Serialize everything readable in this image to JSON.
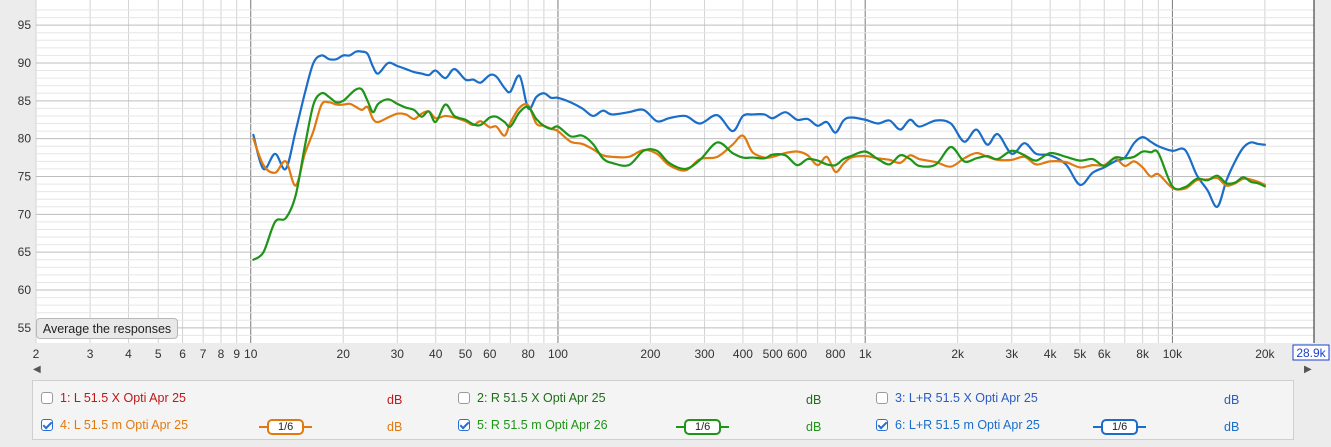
{
  "chart_data": {
    "type": "line",
    "x_scale": "log",
    "xlim": [
      2,
      28900
    ],
    "ylim": [
      53,
      97
    ],
    "grid": true,
    "yticks": [
      55,
      60,
      65,
      70,
      75,
      80,
      85,
      90,
      95
    ],
    "xticks": [
      {
        "v": 2,
        "label": "2"
      },
      {
        "v": 3,
        "label": "3"
      },
      {
        "v": 4,
        "label": "4"
      },
      {
        "v": 5,
        "label": "5"
      },
      {
        "v": 6,
        "label": "6"
      },
      {
        "v": 7,
        "label": "7"
      },
      {
        "v": 8,
        "label": "8"
      },
      {
        "v": 9,
        "label": "9"
      },
      {
        "v": 10,
        "label": "10"
      },
      {
        "v": 20,
        "label": "20"
      },
      {
        "v": 30,
        "label": "30"
      },
      {
        "v": 40,
        "label": "40"
      },
      {
        "v": 50,
        "label": "50"
      },
      {
        "v": 60,
        "label": "60"
      },
      {
        "v": 80,
        "label": "80"
      },
      {
        "v": 100,
        "label": "100"
      },
      {
        "v": 200,
        "label": "200"
      },
      {
        "v": 300,
        "label": "300"
      },
      {
        "v": 400,
        "label": "400"
      },
      {
        "v": 500,
        "label": "500"
      },
      {
        "v": 600,
        "label": "600"
      },
      {
        "v": 800,
        "label": "800"
      },
      {
        "v": 1000,
        "label": "1k"
      },
      {
        "v": 2000,
        "label": "2k"
      },
      {
        "v": 3000,
        "label": "3k"
      },
      {
        "v": 4000,
        "label": "4k"
      },
      {
        "v": 5000,
        "label": "5k"
      },
      {
        "v": 6000,
        "label": "6k"
      },
      {
        "v": 8000,
        "label": "8k"
      },
      {
        "v": 10000,
        "label": "10k"
      },
      {
        "v": 20000,
        "label": "20k"
      }
    ],
    "x_end_label": "28.9k",
    "series": [
      {
        "name": "L+R 51.5 m Opti Apr 25",
        "color": "#1a6ec8",
        "x": [
          10.2,
          11,
          12,
          13,
          14,
          15,
          16,
          17,
          18,
          19,
          20,
          21,
          22,
          23,
          24,
          25,
          26,
          28,
          30,
          32,
          34,
          36,
          38,
          40,
          43,
          46,
          50,
          53,
          56,
          60,
          63,
          67,
          70,
          75,
          80,
          85,
          90,
          95,
          100,
          110,
          120,
          130,
          140,
          150,
          170,
          190,
          210,
          230,
          260,
          290,
          330,
          370,
          400,
          430,
          470,
          500,
          550,
          600,
          650,
          700,
          750,
          800,
          850,
          900,
          1000,
          1100,
          1200,
          1300,
          1400,
          1500,
          1700,
          1900,
          2100,
          2300,
          2500,
          2700,
          3000,
          3300,
          3600,
          4000,
          4500,
          5000,
          5500,
          6000,
          6500,
          7000,
          7500,
          8000,
          8500,
          9000,
          10000,
          11000,
          12000,
          13000,
          14000,
          15000,
          16000,
          17000,
          18000,
          19000,
          20000
        ],
        "y": [
          80.5,
          76,
          78,
          76,
          81,
          86,
          90,
          91,
          90.5,
          90.5,
          91,
          91,
          91.5,
          91.5,
          91.2,
          89.5,
          88.6,
          90,
          89.6,
          89.2,
          88.8,
          88.6,
          88.4,
          89,
          88,
          89.2,
          87.8,
          87.8,
          87.4,
          88.4,
          88.2,
          86.7,
          86.2,
          88.3,
          84,
          85.5,
          86,
          85.4,
          85.4,
          84.8,
          84,
          83,
          83.7,
          83.2,
          83.5,
          83.8,
          82.3,
          82.7,
          83,
          82,
          83.1,
          81,
          83,
          83.2,
          83.2,
          82.7,
          83.5,
          82.5,
          82.6,
          81.7,
          82.2,
          80.8,
          82.4,
          82.8,
          82.5,
          82,
          82.4,
          81.2,
          82.5,
          81.6,
          82.4,
          82,
          79.6,
          81.2,
          79.2,
          80.6,
          78,
          79.4,
          78,
          77.8,
          76.6,
          73.9,
          75.5,
          76.2,
          77,
          77.5,
          79.4,
          80.2,
          79.6,
          79,
          78.4,
          78.5,
          75.2,
          73.2,
          71,
          74.5,
          77,
          78.8,
          79.5,
          79.3,
          79.2
        ]
      },
      {
        "name": "L 51.5 m Opti Apr 25",
        "color": "#e07a10",
        "x": [
          10.2,
          11,
          12,
          13,
          14,
          15,
          16,
          17,
          18,
          19,
          20,
          21,
          22,
          23,
          24,
          25,
          26,
          28,
          30,
          32,
          34,
          36,
          38,
          40,
          43,
          46,
          50,
          53,
          56,
          60,
          63,
          67,
          70,
          75,
          80,
          85,
          90,
          95,
          100,
          110,
          120,
          130,
          140,
          150,
          170,
          190,
          210,
          230,
          260,
          290,
          330,
          370,
          400,
          430,
          470,
          500,
          550,
          600,
          650,
          700,
          750,
          800,
          850,
          900,
          1000,
          1100,
          1200,
          1300,
          1400,
          1500,
          1700,
          1900,
          2100,
          2300,
          2500,
          2700,
          3000,
          3300,
          3600,
          4000,
          4500,
          5000,
          5500,
          6000,
          6500,
          7000,
          7500,
          8000,
          8500,
          9000,
          10000,
          11000,
          12000,
          13000,
          14000,
          15000,
          16000,
          17000,
          18000,
          19000,
          20000
        ],
        "y": [
          80,
          76.5,
          75.5,
          77,
          73.8,
          78,
          81,
          84.5,
          84.8,
          84.5,
          84.5,
          84.6,
          84.2,
          83.8,
          84.2,
          82.6,
          82.2,
          82.8,
          83.3,
          83.2,
          82.6,
          83.3,
          83.6,
          82.7,
          83,
          82.8,
          82.3,
          81.8,
          82.3,
          81.5,
          81.6,
          80.4,
          82.1,
          84.1,
          84.4,
          82,
          81.7,
          81.3,
          81,
          79.6,
          79.3,
          78.6,
          77.8,
          77.6,
          77.6,
          78.5,
          78,
          76.5,
          75.8,
          77.3,
          77.6,
          79.2,
          80.4,
          78.2,
          77.5,
          77.6,
          78.1,
          78.3,
          77.8,
          76.5,
          77.6,
          75.6,
          76.7,
          77.5,
          77.7,
          77.4,
          77.2,
          76.8,
          77.8,
          77.3,
          76.9,
          76.3,
          77.4,
          78.1,
          77.6,
          77.2,
          77.2,
          77.6,
          76.6,
          77,
          76.9,
          76.2,
          76.5,
          76.5,
          77.4,
          76.4,
          77,
          76.2,
          75,
          75.3,
          73.5,
          73.4,
          74.5,
          74.6,
          74.8,
          73.8,
          74.1,
          74.7,
          74.6,
          74.3,
          73.9
        ]
      },
      {
        "name": "R 51.5 m Opti Apr 26",
        "color": "#1e9418",
        "x": [
          10.2,
          11,
          12,
          13,
          14,
          15,
          16,
          17,
          18,
          19,
          20,
          21,
          22,
          23,
          24,
          25,
          26,
          28,
          30,
          32,
          34,
          36,
          38,
          40,
          43,
          46,
          50,
          53,
          56,
          60,
          63,
          67,
          70,
          75,
          80,
          85,
          90,
          95,
          100,
          110,
          120,
          130,
          140,
          150,
          170,
          190,
          210,
          230,
          260,
          290,
          330,
          370,
          400,
          430,
          470,
          500,
          550,
          600,
          650,
          700,
          750,
          800,
          850,
          900,
          1000,
          1100,
          1200,
          1300,
          1400,
          1500,
          1700,
          1900,
          2100,
          2300,
          2500,
          2700,
          3000,
          3300,
          3600,
          4000,
          4500,
          5000,
          5500,
          6000,
          6500,
          7000,
          7500,
          8000,
          8500,
          9000,
          10000,
          11000,
          12000,
          13000,
          14000,
          15000,
          16000,
          17000,
          18000,
          19000,
          20000
        ],
        "y": [
          64,
          65,
          69,
          69.5,
          72.5,
          79,
          84.5,
          86,
          85.5,
          84.8,
          85,
          85.8,
          86.5,
          86.5,
          85,
          83.5,
          84.6,
          85.2,
          84.6,
          84.1,
          83.8,
          82.9,
          83.6,
          82.2,
          84.5,
          83,
          82.5,
          81.9,
          81.8,
          82.8,
          82.9,
          82.2,
          81.6,
          83.5,
          84.2,
          82.6,
          81.7,
          81.3,
          81.6,
          80.3,
          80.4,
          79.3,
          77.4,
          76.8,
          76.5,
          78.4,
          78.4,
          76.8,
          76,
          77.2,
          79.5,
          78.1,
          77.5,
          77.5,
          77.4,
          77.9,
          77.8,
          76.5,
          77.3,
          77.1,
          76.6,
          76.5,
          77.3,
          77.7,
          78.3,
          77.3,
          76.6,
          77.8,
          77.3,
          76.4,
          76.6,
          78.9,
          77,
          77.4,
          77.7,
          77.3,
          78.4,
          77.8,
          77.1,
          78.1,
          77.6,
          77.1,
          77.3,
          76.4,
          77.5,
          77.4,
          77.6,
          78.3,
          78.2,
          78.1,
          73.7,
          73.6,
          74.7,
          74.5,
          75.1,
          74.1,
          74.2,
          74.9,
          74.3,
          74.1,
          73.7
        ]
      }
    ]
  },
  "ui": {
    "average_button": "Average the responses"
  },
  "legend": {
    "items": [
      {
        "label": "1: L 51.5 X Opti Apr 25",
        "unit": "dB",
        "checked": false,
        "color": "#c01818",
        "unit_color": "#c01818"
      },
      {
        "label": "2: R 51.5 X Opti Apr 25",
        "unit": "dB",
        "checked": false,
        "color": "#1e6e18",
        "unit_color": "#1e6e18"
      },
      {
        "label": "3: L+R 51.5 X Opti Apr 25",
        "unit": "dB",
        "checked": false,
        "color": "#2b5cc2",
        "unit_color": "#2b5cc2"
      },
      {
        "label": "4: L 51.5 m Opti Apr 25",
        "unit": "dB",
        "checked": true,
        "color": "#e07a10",
        "unit_color": "#e07a10",
        "smoothing": "1/6"
      },
      {
        "label": "5: R 51.5 m Opti Apr 26",
        "unit": "dB",
        "checked": true,
        "color": "#1e9418",
        "unit_color": "#1e9418",
        "smoothing": "1/6"
      },
      {
        "label": "6: L+R 51.5 m Opti Apr 25",
        "unit": "dB",
        "checked": true,
        "color": "#1a6ec8",
        "unit_color": "#1a6ec8",
        "smoothing": "1/6"
      }
    ]
  }
}
